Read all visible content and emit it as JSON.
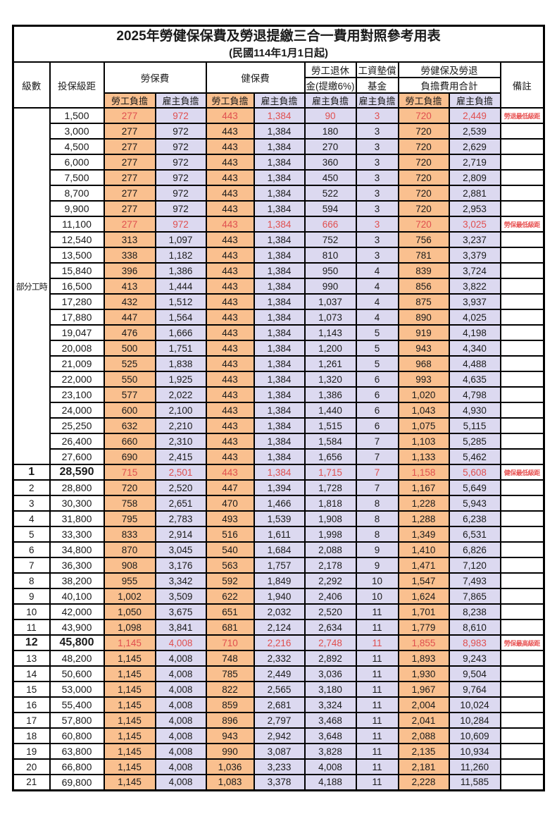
{
  "title": "2025年勞健保保費及勞退提繳三合一費用對照參考用表",
  "subtitle": "(民國114年1月1日起)",
  "header": {
    "level": "級數",
    "bracket": "投保級距",
    "labor_insurance": "勞保費",
    "health_insurance": "健保費",
    "pension_line1": "勞工退休",
    "pension_line2": "金(提繳6%)",
    "wage_fund_line1": "工資墊償",
    "wage_fund_line2": "基金",
    "total_line1": "勞健保及勞退",
    "total_line2": "負擔費用合計",
    "employee_share": "勞工負擔",
    "employer_share": "雇主負擔",
    "note": "備註"
  },
  "part_time_label": "部分工時",
  "colors": {
    "employee_bg": "#FAC08F",
    "employer_bg": "#DCD9F0",
    "highlight_text": "#E04F4F",
    "note_text": "#E85555",
    "border": "#000000"
  },
  "rows": [
    {
      "level": "",
      "bracket": "1,500",
      "li_emp": "277",
      "li_er": "972",
      "hi_emp": "443",
      "hi_er": "1,384",
      "pension": "90",
      "wage_fund": "3",
      "total_emp": "720",
      "total_er": "2,449",
      "note": "勞退最低級距",
      "hl": true,
      "sp": false
    },
    {
      "level": "",
      "bracket": "3,000",
      "li_emp": "277",
      "li_er": "972",
      "hi_emp": "443",
      "hi_er": "1,384",
      "pension": "180",
      "wage_fund": "3",
      "total_emp": "720",
      "total_er": "2,539",
      "note": "",
      "hl": false,
      "sp": false
    },
    {
      "level": "",
      "bracket": "4,500",
      "li_emp": "277",
      "li_er": "972",
      "hi_emp": "443",
      "hi_er": "1,384",
      "pension": "270",
      "wage_fund": "3",
      "total_emp": "720",
      "total_er": "2,629",
      "note": "",
      "hl": false,
      "sp": false
    },
    {
      "level": "",
      "bracket": "6,000",
      "li_emp": "277",
      "li_er": "972",
      "hi_emp": "443",
      "hi_er": "1,384",
      "pension": "360",
      "wage_fund": "3",
      "total_emp": "720",
      "total_er": "2,719",
      "note": "",
      "hl": false,
      "sp": false
    },
    {
      "level": "",
      "bracket": "7,500",
      "li_emp": "277",
      "li_er": "972",
      "hi_emp": "443",
      "hi_er": "1,384",
      "pension": "450",
      "wage_fund": "3",
      "total_emp": "720",
      "total_er": "2,809",
      "note": "",
      "hl": false,
      "sp": false
    },
    {
      "level": "",
      "bracket": "8,700",
      "li_emp": "277",
      "li_er": "972",
      "hi_emp": "443",
      "hi_er": "1,384",
      "pension": "522",
      "wage_fund": "3",
      "total_emp": "720",
      "total_er": "2,881",
      "note": "",
      "hl": false,
      "sp": false
    },
    {
      "level": "",
      "bracket": "9,900",
      "li_emp": "277",
      "li_er": "972",
      "hi_emp": "443",
      "hi_er": "1,384",
      "pension": "594",
      "wage_fund": "3",
      "total_emp": "720",
      "total_er": "2,953",
      "note": "",
      "hl": false,
      "sp": false
    },
    {
      "level": "",
      "bracket": "11,100",
      "li_emp": "277",
      "li_er": "972",
      "hi_emp": "443",
      "hi_er": "1,384",
      "pension": "666",
      "wage_fund": "3",
      "total_emp": "720",
      "total_er": "3,025",
      "note": "勞保最低級距",
      "hl": true,
      "sp": false
    },
    {
      "level": "",
      "bracket": "12,540",
      "li_emp": "313",
      "li_er": "1,097",
      "hi_emp": "443",
      "hi_er": "1,384",
      "pension": "752",
      "wage_fund": "3",
      "total_emp": "756",
      "total_er": "3,237",
      "note": "",
      "hl": false,
      "sp": false
    },
    {
      "level": "",
      "bracket": "13,500",
      "li_emp": "338",
      "li_er": "1,182",
      "hi_emp": "443",
      "hi_er": "1,384",
      "pension": "810",
      "wage_fund": "3",
      "total_emp": "781",
      "total_er": "3,379",
      "note": "",
      "hl": false,
      "sp": false
    },
    {
      "level": "",
      "bracket": "15,840",
      "li_emp": "396",
      "li_er": "1,386",
      "hi_emp": "443",
      "hi_er": "1,384",
      "pension": "950",
      "wage_fund": "4",
      "total_emp": "839",
      "total_er": "3,724",
      "note": "",
      "hl": false,
      "sp": false
    },
    {
      "level": "",
      "bracket": "16,500",
      "li_emp": "413",
      "li_er": "1,444",
      "hi_emp": "443",
      "hi_er": "1,384",
      "pension": "990",
      "wage_fund": "4",
      "total_emp": "856",
      "total_er": "3,822",
      "note": "",
      "hl": false,
      "sp": false
    },
    {
      "level": "",
      "bracket": "17,280",
      "li_emp": "432",
      "li_er": "1,512",
      "hi_emp": "443",
      "hi_er": "1,384",
      "pension": "1,037",
      "wage_fund": "4",
      "total_emp": "875",
      "total_er": "3,937",
      "note": "",
      "hl": false,
      "sp": false
    },
    {
      "level": "",
      "bracket": "17,880",
      "li_emp": "447",
      "li_er": "1,564",
      "hi_emp": "443",
      "hi_er": "1,384",
      "pension": "1,073",
      "wage_fund": "4",
      "total_emp": "890",
      "total_er": "4,025",
      "note": "",
      "hl": false,
      "sp": false
    },
    {
      "level": "",
      "bracket": "19,047",
      "li_emp": "476",
      "li_er": "1,666",
      "hi_emp": "443",
      "hi_er": "1,384",
      "pension": "1,143",
      "wage_fund": "5",
      "total_emp": "919",
      "total_er": "4,198",
      "note": "",
      "hl": false,
      "sp": false
    },
    {
      "level": "",
      "bracket": "20,008",
      "li_emp": "500",
      "li_er": "1,751",
      "hi_emp": "443",
      "hi_er": "1,384",
      "pension": "1,200",
      "wage_fund": "5",
      "total_emp": "943",
      "total_er": "4,340",
      "note": "",
      "hl": false,
      "sp": false
    },
    {
      "level": "",
      "bracket": "21,009",
      "li_emp": "525",
      "li_er": "1,838",
      "hi_emp": "443",
      "hi_er": "1,384",
      "pension": "1,261",
      "wage_fund": "5",
      "total_emp": "968",
      "total_er": "4,488",
      "note": "",
      "hl": false,
      "sp": false
    },
    {
      "level": "",
      "bracket": "22,000",
      "li_emp": "550",
      "li_er": "1,925",
      "hi_emp": "443",
      "hi_er": "1,384",
      "pension": "1,320",
      "wage_fund": "6",
      "total_emp": "993",
      "total_er": "4,635",
      "note": "",
      "hl": false,
      "sp": false
    },
    {
      "level": "",
      "bracket": "23,100",
      "li_emp": "577",
      "li_er": "2,022",
      "hi_emp": "443",
      "hi_er": "1,384",
      "pension": "1,386",
      "wage_fund": "6",
      "total_emp": "1,020",
      "total_er": "4,798",
      "note": "",
      "hl": false,
      "sp": false
    },
    {
      "level": "",
      "bracket": "24,000",
      "li_emp": "600",
      "li_er": "2,100",
      "hi_emp": "443",
      "hi_er": "1,384",
      "pension": "1,440",
      "wage_fund": "6",
      "total_emp": "1,043",
      "total_er": "4,930",
      "note": "",
      "hl": false,
      "sp": false
    },
    {
      "level": "",
      "bracket": "25,250",
      "li_emp": "632",
      "li_er": "2,210",
      "hi_emp": "443",
      "hi_er": "1,384",
      "pension": "1,515",
      "wage_fund": "6",
      "total_emp": "1,075",
      "total_er": "5,115",
      "note": "",
      "hl": false,
      "sp": false
    },
    {
      "level": "",
      "bracket": "26,400",
      "li_emp": "660",
      "li_er": "2,310",
      "hi_emp": "443",
      "hi_er": "1,384",
      "pension": "1,584",
      "wage_fund": "7",
      "total_emp": "1,103",
      "total_er": "5,285",
      "note": "",
      "hl": false,
      "sp": false
    },
    {
      "level": "",
      "bracket": "27,600",
      "li_emp": "690",
      "li_er": "2,415",
      "hi_emp": "443",
      "hi_er": "1,384",
      "pension": "1,656",
      "wage_fund": "7",
      "total_emp": "1,133",
      "total_er": "5,462",
      "note": "",
      "hl": false,
      "sp": false
    },
    {
      "level": "1",
      "bracket": "28,590",
      "li_emp": "715",
      "li_er": "2,501",
      "hi_emp": "443",
      "hi_er": "1,384",
      "pension": "1,715",
      "wage_fund": "7",
      "total_emp": "1,158",
      "total_er": "5,608",
      "note": "健保最低級距",
      "hl": true,
      "sp": true
    },
    {
      "level": "2",
      "bracket": "28,800",
      "li_emp": "720",
      "li_er": "2,520",
      "hi_emp": "447",
      "hi_er": "1,394",
      "pension": "1,728",
      "wage_fund": "7",
      "total_emp": "1,167",
      "total_er": "5,649",
      "note": "",
      "hl": false,
      "sp": false
    },
    {
      "level": "3",
      "bracket": "30,300",
      "li_emp": "758",
      "li_er": "2,651",
      "hi_emp": "470",
      "hi_er": "1,466",
      "pension": "1,818",
      "wage_fund": "8",
      "total_emp": "1,228",
      "total_er": "5,943",
      "note": "",
      "hl": false,
      "sp": false
    },
    {
      "level": "4",
      "bracket": "31,800",
      "li_emp": "795",
      "li_er": "2,783",
      "hi_emp": "493",
      "hi_er": "1,539",
      "pension": "1,908",
      "wage_fund": "8",
      "total_emp": "1,288",
      "total_er": "6,238",
      "note": "",
      "hl": false,
      "sp": false
    },
    {
      "level": "5",
      "bracket": "33,300",
      "li_emp": "833",
      "li_er": "2,914",
      "hi_emp": "516",
      "hi_er": "1,611",
      "pension": "1,998",
      "wage_fund": "8",
      "total_emp": "1,349",
      "total_er": "6,531",
      "note": "",
      "hl": false,
      "sp": false
    },
    {
      "level": "6",
      "bracket": "34,800",
      "li_emp": "870",
      "li_er": "3,045",
      "hi_emp": "540",
      "hi_er": "1,684",
      "pension": "2,088",
      "wage_fund": "9",
      "total_emp": "1,410",
      "total_er": "6,826",
      "note": "",
      "hl": false,
      "sp": false
    },
    {
      "level": "7",
      "bracket": "36,300",
      "li_emp": "908",
      "li_er": "3,176",
      "hi_emp": "563",
      "hi_er": "1,757",
      "pension": "2,178",
      "wage_fund": "9",
      "total_emp": "1,471",
      "total_er": "7,120",
      "note": "",
      "hl": false,
      "sp": false
    },
    {
      "level": "8",
      "bracket": "38,200",
      "li_emp": "955",
      "li_er": "3,342",
      "hi_emp": "592",
      "hi_er": "1,849",
      "pension": "2,292",
      "wage_fund": "10",
      "total_emp": "1,547",
      "total_er": "7,493",
      "note": "",
      "hl": false,
      "sp": false
    },
    {
      "level": "9",
      "bracket": "40,100",
      "li_emp": "1,002",
      "li_er": "3,509",
      "hi_emp": "622",
      "hi_er": "1,940",
      "pension": "2,406",
      "wage_fund": "10",
      "total_emp": "1,624",
      "total_er": "7,865",
      "note": "",
      "hl": false,
      "sp": false
    },
    {
      "level": "10",
      "bracket": "42,000",
      "li_emp": "1,050",
      "li_er": "3,675",
      "hi_emp": "651",
      "hi_er": "2,032",
      "pension": "2,520",
      "wage_fund": "11",
      "total_emp": "1,701",
      "total_er": "8,238",
      "note": "",
      "hl": false,
      "sp": false
    },
    {
      "level": "11",
      "bracket": "43,900",
      "li_emp": "1,098",
      "li_er": "3,841",
      "hi_emp": "681",
      "hi_er": "2,124",
      "pension": "2,634",
      "wage_fund": "11",
      "total_emp": "1,779",
      "total_er": "8,610",
      "note": "",
      "hl": false,
      "sp": false
    },
    {
      "level": "12",
      "bracket": "45,800",
      "li_emp": "1,145",
      "li_er": "4,008",
      "hi_emp": "710",
      "hi_er": "2,216",
      "pension": "2,748",
      "wage_fund": "11",
      "total_emp": "1,855",
      "total_er": "8,983",
      "note": "勞保最高級距",
      "hl": true,
      "sp": true
    },
    {
      "level": "13",
      "bracket": "48,200",
      "li_emp": "1,145",
      "li_er": "4,008",
      "hi_emp": "748",
      "hi_er": "2,332",
      "pension": "2,892",
      "wage_fund": "11",
      "total_emp": "1,893",
      "total_er": "9,243",
      "note": "",
      "hl": false,
      "sp": false
    },
    {
      "level": "14",
      "bracket": "50,600",
      "li_emp": "1,145",
      "li_er": "4,008",
      "hi_emp": "785",
      "hi_er": "2,449",
      "pension": "3,036",
      "wage_fund": "11",
      "total_emp": "1,930",
      "total_er": "9,504",
      "note": "",
      "hl": false,
      "sp": false
    },
    {
      "level": "15",
      "bracket": "53,000",
      "li_emp": "1,145",
      "li_er": "4,008",
      "hi_emp": "822",
      "hi_er": "2,565",
      "pension": "3,180",
      "wage_fund": "11",
      "total_emp": "1,967",
      "total_er": "9,764",
      "note": "",
      "hl": false,
      "sp": false
    },
    {
      "level": "16",
      "bracket": "55,400",
      "li_emp": "1,145",
      "li_er": "4,008",
      "hi_emp": "859",
      "hi_er": "2,681",
      "pension": "3,324",
      "wage_fund": "11",
      "total_emp": "2,004",
      "total_er": "10,024",
      "note": "",
      "hl": false,
      "sp": false
    },
    {
      "level": "17",
      "bracket": "57,800",
      "li_emp": "1,145",
      "li_er": "4,008",
      "hi_emp": "896",
      "hi_er": "2,797",
      "pension": "3,468",
      "wage_fund": "11",
      "total_emp": "2,041",
      "total_er": "10,284",
      "note": "",
      "hl": false,
      "sp": false
    },
    {
      "level": "18",
      "bracket": "60,800",
      "li_emp": "1,145",
      "li_er": "4,008",
      "hi_emp": "943",
      "hi_er": "2,942",
      "pension": "3,648",
      "wage_fund": "11",
      "total_emp": "2,088",
      "total_er": "10,609",
      "note": "",
      "hl": false,
      "sp": false
    },
    {
      "level": "19",
      "bracket": "63,800",
      "li_emp": "1,145",
      "li_er": "4,008",
      "hi_emp": "990",
      "hi_er": "3,087",
      "pension": "3,828",
      "wage_fund": "11",
      "total_emp": "2,135",
      "total_er": "10,934",
      "note": "",
      "hl": false,
      "sp": false
    },
    {
      "level": "20",
      "bracket": "66,800",
      "li_emp": "1,145",
      "li_er": "4,008",
      "hi_emp": "1,036",
      "hi_er": "3,233",
      "pension": "4,008",
      "wage_fund": "11",
      "total_emp": "2,181",
      "total_er": "11,260",
      "note": "",
      "hl": false,
      "sp": false
    },
    {
      "level": "21",
      "bracket": "69,800",
      "li_emp": "1,145",
      "li_er": "4,008",
      "hi_emp": "1,083",
      "hi_er": "3,378",
      "pension": "4,188",
      "wage_fund": "11",
      "total_emp": "2,228",
      "total_er": "11,585",
      "note": "",
      "hl": false,
      "sp": false
    }
  ]
}
